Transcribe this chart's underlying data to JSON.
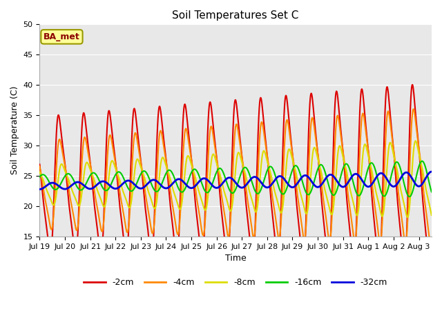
{
  "title": "Soil Temperatures Set C",
  "xlabel": "Time",
  "ylabel": "Soil Temperature (C)",
  "ylim": [
    15,
    50
  ],
  "yticks": [
    15,
    20,
    25,
    30,
    35,
    40,
    45,
    50
  ],
  "series_labels": [
    "-2cm",
    "-4cm",
    "-8cm",
    "-16cm",
    "-32cm"
  ],
  "series_colors": [
    "#dd0000",
    "#ff8800",
    "#dddd00",
    "#00cc00",
    "#0000dd"
  ],
  "series_linewidths": [
    1.5,
    1.5,
    1.5,
    1.5,
    2.0
  ],
  "n_days": 15.5,
  "samples_per_day": 288,
  "background_color": "#ffffff",
  "plot_bg_color": "#e8e8e8",
  "grid_color": "#ffffff",
  "annotation_text": "BA_met",
  "annotation_bg": "#ffff99",
  "annotation_border": "#999900",
  "title_fontsize": 11,
  "axis_fontsize": 9,
  "tick_fontsize": 8,
  "legend_fontsize": 9,
  "xtick_labels": [
    "Jul 19",
    "Jul 20",
    "Jul 21",
    "Jul 22",
    "Jul 23",
    "Jul 24",
    "Jul 25",
    "Jul 26",
    "Jul 27",
    "Jul 28",
    "Jul 29",
    "Jul 30",
    "Jul 31",
    "Aug 1",
    "Aug 2",
    "Aug 3"
  ]
}
